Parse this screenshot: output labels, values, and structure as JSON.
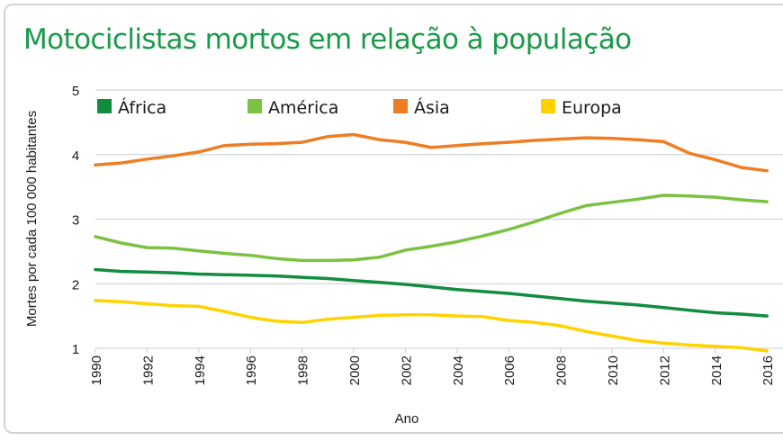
{
  "chart_data": {
    "type": "line",
    "title": "Motociclistas mortos em relação à população",
    "xlabel": "Ano",
    "ylabel": "Mortes por cada 100 000 habitantes",
    "x": [
      1990,
      1991,
      1992,
      1993,
      1994,
      1995,
      1996,
      1997,
      1998,
      1999,
      2000,
      2001,
      2002,
      2003,
      2004,
      2005,
      2006,
      2007,
      2008,
      2009,
      2010,
      2011,
      2012,
      2013,
      2014,
      2015,
      2016
    ],
    "x_ticks": [
      "1990",
      "1992",
      "1994",
      "1996",
      "1998",
      "2000",
      "2002",
      "2004",
      "2006",
      "2008",
      "2010",
      "2012",
      "2014",
      "2016"
    ],
    "y_ticks": [
      "1",
      "2",
      "3",
      "4",
      "5"
    ],
    "xlim": [
      1990,
      2016
    ],
    "ylim": [
      1,
      5
    ],
    "grid": true,
    "legend_position": "top",
    "series": [
      {
        "name": "África",
        "color": "#128c3f",
        "values": [
          2.22,
          2.19,
          2.18,
          2.17,
          2.15,
          2.14,
          2.13,
          2.12,
          2.1,
          2.08,
          2.05,
          2.02,
          1.99,
          1.95,
          1.91,
          1.88,
          1.85,
          1.81,
          1.77,
          1.73,
          1.7,
          1.67,
          1.63,
          1.59,
          1.55,
          1.53,
          1.5
        ]
      },
      {
        "name": "América",
        "color": "#7cc242",
        "values": [
          2.73,
          2.63,
          2.56,
          2.55,
          2.51,
          2.47,
          2.44,
          2.39,
          2.36,
          2.36,
          2.37,
          2.41,
          2.52,
          2.58,
          2.65,
          2.74,
          2.84,
          2.96,
          3.09,
          3.21,
          3.26,
          3.31,
          3.37,
          3.36,
          3.34,
          3.3,
          3.27
        ]
      },
      {
        "name": "Ásia",
        "color": "#ee7d23",
        "values": [
          3.84,
          3.87,
          3.93,
          3.98,
          4.04,
          4.14,
          4.16,
          4.17,
          4.19,
          4.28,
          4.31,
          4.23,
          4.19,
          4.11,
          4.14,
          4.17,
          4.19,
          4.22,
          4.24,
          4.26,
          4.25,
          4.23,
          4.2,
          4.02,
          3.92,
          3.8,
          3.75
        ]
      },
      {
        "name": "Europa",
        "color": "#ffd200",
        "values": [
          1.74,
          1.72,
          1.69,
          1.66,
          1.65,
          1.57,
          1.48,
          1.42,
          1.4,
          1.45,
          1.48,
          1.51,
          1.52,
          1.52,
          1.5,
          1.49,
          1.43,
          1.4,
          1.35,
          1.26,
          1.19,
          1.12,
          1.08,
          1.05,
          1.03,
          1.01,
          0.96
        ]
      }
    ]
  }
}
